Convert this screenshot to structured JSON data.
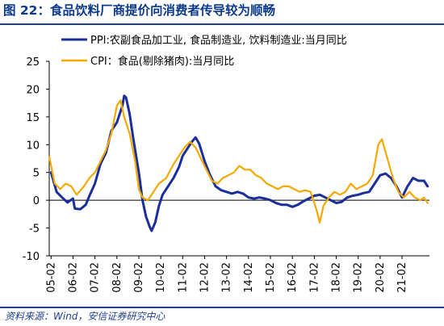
{
  "figure": {
    "title": "图 22：食品饮料厂商提价向消费者传导较为顺畅",
    "source": "资料来源：Wind，安信证券研究中心"
  },
  "chart_data": {
    "type": "line",
    "title": "",
    "xlabel": "",
    "ylabel": "",
    "ylim": [
      -10,
      25
    ],
    "yticks": [
      -10,
      -5,
      0,
      5,
      10,
      15,
      20,
      25
    ],
    "xlim": [
      "2005-01",
      "2022-05"
    ],
    "xticks": [
      "05-02",
      "06-02",
      "07-02",
      "08-02",
      "09-02",
      "10-02",
      "11-02",
      "12-02",
      "13-02",
      "14-02",
      "15-02",
      "16-02",
      "17-02",
      "18-02",
      "19-02",
      "20-02",
      "21-02"
    ],
    "grid": false,
    "legend_position": "top",
    "series": [
      {
        "name": "PPI:农副食品加工业, 食品制造业, 饮料制造业:当月同比",
        "color": "#1a2f9c",
        "points": [
          [
            "2005-02",
            5
          ],
          [
            "2005-05",
            1.5
          ],
          [
            "2005-08",
            0.5
          ],
          [
            "2005-11",
            -0.4
          ],
          [
            "2006-02",
            0.3
          ],
          [
            "2006-03",
            -1.5
          ],
          [
            "2006-06",
            -1.6
          ],
          [
            "2006-09",
            -0.8
          ],
          [
            "2006-11",
            0.8
          ],
          [
            "2007-02",
            3
          ],
          [
            "2007-05",
            6.5
          ],
          [
            "2007-08",
            8.5
          ],
          [
            "2007-11",
            12.5
          ],
          [
            "2008-02",
            14
          ],
          [
            "2008-05",
            17
          ],
          [
            "2008-06",
            18.8
          ],
          [
            "2008-07",
            18.5
          ],
          [
            "2008-09",
            15.5
          ],
          [
            "2008-11",
            11
          ],
          [
            "2009-02",
            5
          ],
          [
            "2009-04",
            0
          ],
          [
            "2009-06",
            -3
          ],
          [
            "2009-08",
            -4.8
          ],
          [
            "2009-09",
            -5.5
          ],
          [
            "2009-11",
            -4
          ],
          [
            "2010-01",
            -1
          ],
          [
            "2010-03",
            1
          ],
          [
            "2010-06",
            2.5
          ],
          [
            "2010-09",
            4
          ],
          [
            "2010-12",
            6
          ],
          [
            "2011-02",
            8
          ],
          [
            "2011-05",
            9.5
          ],
          [
            "2011-07",
            10.5
          ],
          [
            "2011-09",
            11.3
          ],
          [
            "2011-11",
            10.2
          ],
          [
            "2012-02",
            7
          ],
          [
            "2012-05",
            4.5
          ],
          [
            "2012-08",
            2.5
          ],
          [
            "2012-11",
            1.8
          ],
          [
            "2013-02",
            1.5
          ],
          [
            "2013-05",
            1.2
          ],
          [
            "2013-08",
            1.5
          ],
          [
            "2013-11",
            1.2
          ],
          [
            "2014-02",
            0.5
          ],
          [
            "2014-05",
            0.3
          ],
          [
            "2014-08",
            0.5
          ],
          [
            "2014-11",
            0.3
          ],
          [
            "2015-02",
            0
          ],
          [
            "2015-05",
            -0.5
          ],
          [
            "2015-08",
            -0.8
          ],
          [
            "2015-11",
            -0.8
          ],
          [
            "2016-02",
            -1.2
          ],
          [
            "2016-05",
            -0.8
          ],
          [
            "2016-08",
            -0.2
          ],
          [
            "2016-11",
            0.3
          ],
          [
            "2017-02",
            0.8
          ],
          [
            "2017-05",
            1
          ],
          [
            "2017-08",
            0.5
          ],
          [
            "2017-11",
            0
          ],
          [
            "2018-02",
            -0.5
          ],
          [
            "2018-05",
            -0.3
          ],
          [
            "2018-08",
            0.5
          ],
          [
            "2018-11",
            0.8
          ],
          [
            "2019-02",
            1
          ],
          [
            "2019-05",
            1.3
          ],
          [
            "2019-08",
            1.5
          ],
          [
            "2019-11",
            3
          ],
          [
            "2020-02",
            4.5
          ],
          [
            "2020-05",
            4.8
          ],
          [
            "2020-08",
            4
          ],
          [
            "2020-11",
            2.5
          ],
          [
            "2021-02",
            0.5
          ],
          [
            "2021-05",
            2.5
          ],
          [
            "2021-08",
            4
          ],
          [
            "2021-11",
            3.5
          ],
          [
            "2022-02",
            3.5
          ],
          [
            "2022-04",
            2.5
          ]
        ]
      },
      {
        "name": "CPI：食品(剔除猪肉):当月同比",
        "color": "#f5a800",
        "points": [
          [
            "2005-01",
            7.8
          ],
          [
            "2005-04",
            3
          ],
          [
            "2005-07",
            2
          ],
          [
            "2005-10",
            3
          ],
          [
            "2006-01",
            2.5
          ],
          [
            "2006-04",
            1
          ],
          [
            "2006-08",
            2.5
          ],
          [
            "2006-11",
            4
          ],
          [
            "2007-02",
            5
          ],
          [
            "2007-05",
            7
          ],
          [
            "2007-08",
            9
          ],
          [
            "2007-11",
            12
          ],
          [
            "2008-02",
            17
          ],
          [
            "2008-04",
            18
          ],
          [
            "2008-06",
            15
          ],
          [
            "2008-09",
            12
          ],
          [
            "2008-12",
            7
          ],
          [
            "2009-02",
            2
          ],
          [
            "2009-04",
            0.5
          ],
          [
            "2009-07",
            0
          ],
          [
            "2009-10",
            1.5
          ],
          [
            "2010-01",
            3
          ],
          [
            "2010-05",
            4
          ],
          [
            "2010-09",
            6.5
          ],
          [
            "2010-12",
            8
          ],
          [
            "2011-03",
            9.5
          ],
          [
            "2011-06",
            10.5
          ],
          [
            "2011-09",
            9.5
          ],
          [
            "2011-12",
            7.5
          ],
          [
            "2012-03",
            5.5
          ],
          [
            "2012-06",
            3.5
          ],
          [
            "2012-09",
            3
          ],
          [
            "2012-12",
            4
          ],
          [
            "2013-03",
            4.5
          ],
          [
            "2013-06",
            5
          ],
          [
            "2013-09",
            6.2
          ],
          [
            "2013-12",
            5.5
          ],
          [
            "2014-03",
            5.5
          ],
          [
            "2014-06",
            4.5
          ],
          [
            "2014-09",
            4
          ],
          [
            "2014-12",
            3
          ],
          [
            "2015-03",
            2.5
          ],
          [
            "2015-06",
            2
          ],
          [
            "2015-09",
            2.5
          ],
          [
            "2015-12",
            2.5
          ],
          [
            "2016-03",
            2
          ],
          [
            "2016-06",
            1.5
          ],
          [
            "2016-09",
            1.8
          ],
          [
            "2016-12",
            1.5
          ],
          [
            "2017-03",
            -1.5
          ],
          [
            "2017-05",
            -4
          ],
          [
            "2017-07",
            -1
          ],
          [
            "2017-10",
            0.5
          ],
          [
            "2018-01",
            1.5
          ],
          [
            "2018-04",
            1
          ],
          [
            "2018-07",
            1.5
          ],
          [
            "2018-10",
            3
          ],
          [
            "2019-01",
            2
          ],
          [
            "2019-04",
            2.5
          ],
          [
            "2019-07",
            3
          ],
          [
            "2019-10",
            4.5
          ],
          [
            "2020-01",
            10
          ],
          [
            "2020-03",
            11
          ],
          [
            "2020-06",
            7.5
          ],
          [
            "2020-09",
            4
          ],
          [
            "2020-12",
            1.5
          ],
          [
            "2021-03",
            0.5
          ],
          [
            "2021-06",
            1.5
          ],
          [
            "2021-09",
            0.5
          ],
          [
            "2021-12",
            0
          ],
          [
            "2022-02",
            0.5
          ],
          [
            "2022-04",
            -0.5
          ]
        ]
      }
    ]
  }
}
